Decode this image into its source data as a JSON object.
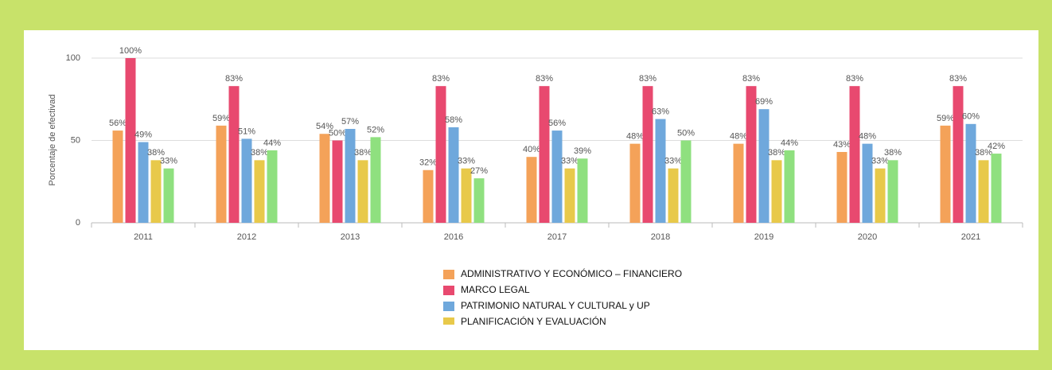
{
  "chart_data": {
    "type": "bar",
    "ylabel": "Porcentaje de efectivad",
    "categories": [
      "2011",
      "2012",
      "2013",
      "2016",
      "2017",
      "2018",
      "2019",
      "2020",
      "2021"
    ],
    "ylim": [
      0,
      100
    ],
    "yticks": [
      0,
      50,
      100
    ],
    "grid": true,
    "series": [
      {
        "name": "ADMINISTRATIVO Y ECONÓMICO – FINANCIERO",
        "color": "#f4a259",
        "values": [
          56,
          59,
          54,
          32,
          40,
          48,
          48,
          43,
          59
        ],
        "value_labels": [
          "56%",
          "59%",
          "54%",
          "32%",
          "40%",
          "48%",
          "48%",
          "43%",
          "59%"
        ]
      },
      {
        "name": "MARCO LEGAL",
        "color": "#e8496f",
        "values": [
          100,
          83,
          50,
          83,
          83,
          83,
          83,
          83,
          83
        ],
        "value_labels": [
          "100%",
          "83%",
          "50%",
          "83%",
          "83%",
          "83%",
          "83%",
          "83%",
          "83%"
        ]
      },
      {
        "name": "PATRIMONIO NATURAL Y CULTURAL y UP",
        "color": "#6fa8dc",
        "values": [
          49,
          51,
          57,
          58,
          56,
          63,
          69,
          48,
          60
        ],
        "value_labels": [
          "49%",
          "51%",
          "57%",
          "58%",
          "56%",
          "63%",
          "69%",
          "48%",
          "60%"
        ]
      },
      {
        "name": "PLANIFICACIÓN Y EVALUACIÓN",
        "color": "#e8c94a",
        "values": [
          38,
          38,
          38,
          33,
          33,
          33,
          38,
          33,
          38
        ],
        "value_labels": [
          "38%",
          "38%",
          "38%",
          "33%",
          "33%",
          "33%",
          "38%",
          "33%",
          "38%"
        ]
      },
      {
        "color": "#8fe07f",
        "values": [
          33,
          44,
          52,
          27,
          39,
          50,
          44,
          38,
          42
        ],
        "value_labels": [
          "33%",
          "44%",
          "52%",
          "27%",
          "39%",
          "50%",
          "44%",
          "38%",
          "42%"
        ]
      }
    ]
  }
}
